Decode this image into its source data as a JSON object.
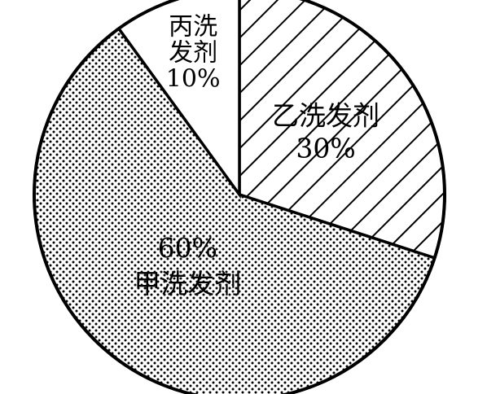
{
  "chart_data": {
    "type": "pie",
    "title": "",
    "categories": [
      "乙洗发剂",
      "甲洗发剂",
      "丙洗发剂"
    ],
    "values": [
      30,
      60,
      10
    ],
    "value_labels": [
      "30%",
      "60%",
      "10%"
    ],
    "slices": [
      {
        "category": "乙洗发剂",
        "value": 30,
        "value_label": "30%",
        "label_lines": [
          "乙洗发剂",
          "30%"
        ],
        "pattern": "diagonal-hatch"
      },
      {
        "category": "甲洗发剂",
        "value": 60,
        "value_label": "60%",
        "label_lines": [
          "60%",
          "甲洗发剂"
        ],
        "pattern": "dots"
      },
      {
        "category": "丙洗发剂",
        "value": 10,
        "value_label": "10%",
        "label_lines": [
          "丙洗",
          "发剂",
          "10%"
        ],
        "pattern": "none"
      }
    ],
    "start_angle": "12 o'clock",
    "direction": "clockwise",
    "legend": "none",
    "colors": {
      "stroke": "#000000",
      "fill": "#ffffff",
      "pattern": "#000000"
    }
  }
}
